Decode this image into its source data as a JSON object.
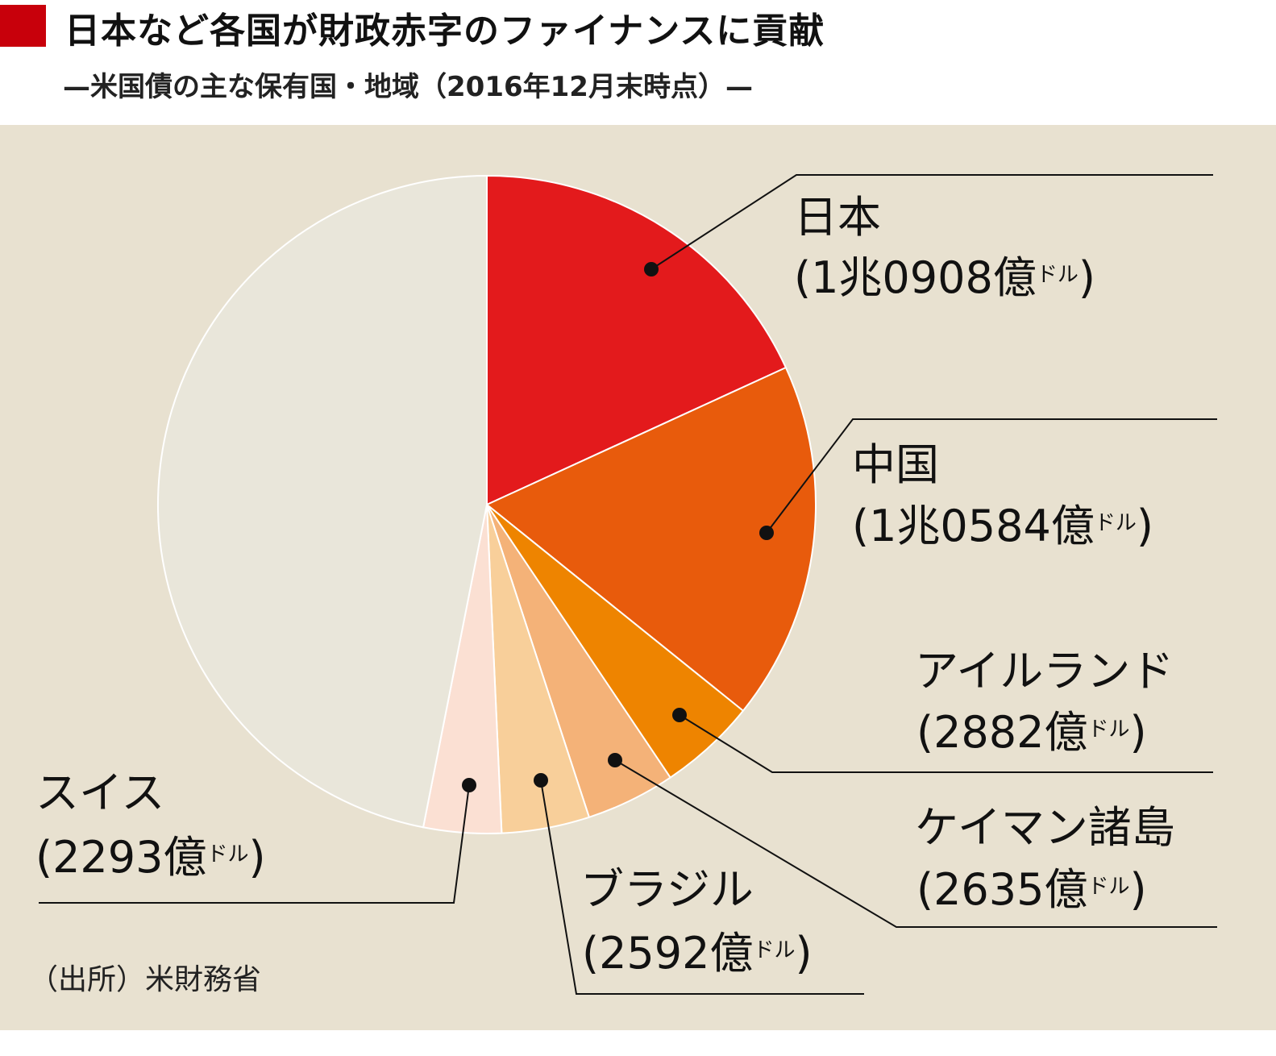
{
  "header": {
    "title": "日本など各国が財政赤字のファイナンスに貢献",
    "subtitle": "—米国債の主な保有国・地域（2016年12月末時点）—"
  },
  "source": "（出所）米財務省",
  "chart_data": {
    "type": "pie",
    "title": "日本など各国が財政赤字のファイナンスに貢献",
    "subtitle": "—米国債の主な保有国・地域（2016年12月末時点）—",
    "unit": "億ドル",
    "start": "top, clockwise",
    "slices": [
      {
        "label": "日本",
        "value": 10908,
        "value_text": "1兆0908億",
        "unit_text": "ドル",
        "color": "#e31a1c"
      },
      {
        "label": "中国",
        "value": 10584,
        "value_text": "1兆0584億",
        "unit_text": "ドル",
        "color": "#e85b0c"
      },
      {
        "label": "アイルランド",
        "value": 2882,
        "value_text": "2882億",
        "unit_text": "ドル",
        "color": "#ee8400"
      },
      {
        "label": "ケイマン諸島",
        "value": 2635,
        "value_text": "2635億",
        "unit_text": "ドル",
        "color": "#f4b278"
      },
      {
        "label": "ブラジル",
        "value": 2592,
        "value_text": "2592億",
        "unit_text": "ドル",
        "color": "#f8cf9a"
      },
      {
        "label": "スイス",
        "value": 2293,
        "value_text": "2293億",
        "unit_text": "ドル",
        "color": "#fbe0d3"
      },
      {
        "label": "",
        "value": 28170,
        "color": "#e9e6da"
      }
    ],
    "background": "#e8e1d0",
    "accent": "#c8000b"
  }
}
